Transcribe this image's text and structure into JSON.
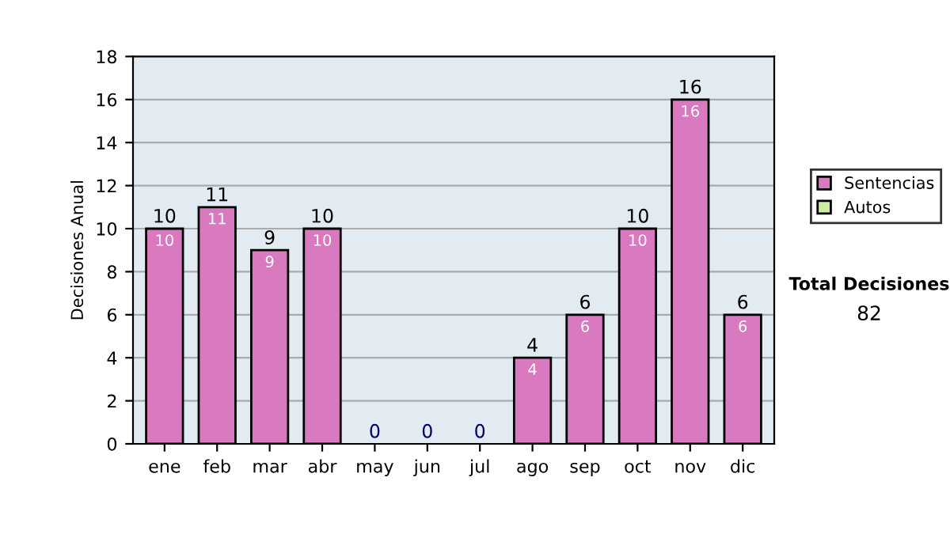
{
  "chart_data": {
    "type": "bar",
    "ylabel": "Decisiones Anual",
    "categories": [
      "ene",
      "feb",
      "mar",
      "abr",
      "may",
      "jun",
      "jul",
      "ago",
      "sep",
      "oct",
      "nov",
      "dic"
    ],
    "stacked": true,
    "series": [
      {
        "name": "Sentencias",
        "color": "#d97ac0",
        "values": [
          10,
          11,
          9,
          10,
          0,
          0,
          0,
          4,
          6,
          10,
          16,
          6
        ],
        "value_labels": [
          "10",
          "11",
          "9",
          "10",
          null,
          null,
          null,
          "4",
          "6",
          "10",
          "16",
          "6"
        ]
      },
      {
        "name": "Autos",
        "color": "#cceea0",
        "values": [
          0,
          0,
          0,
          0,
          0,
          0,
          0,
          0,
          0,
          0,
          0,
          0
        ]
      }
    ],
    "totals": [
      "10",
      "11",
      "9",
      "10",
      "0",
      "0",
      "0",
      "4",
      "6",
      "10",
      "16",
      "6"
    ],
    "ylim": [
      0,
      18
    ],
    "yticks": [
      0,
      2,
      4,
      6,
      8,
      10,
      12,
      14,
      16,
      18
    ],
    "grid": "y",
    "legend": "right",
    "annotations": [
      "Total Decisiones",
      "82"
    ]
  }
}
